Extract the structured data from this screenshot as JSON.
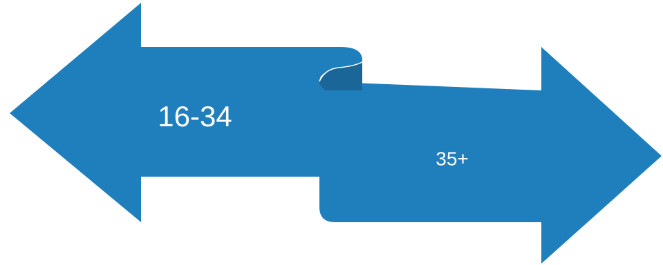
{
  "colors": {
    "arrow_fill": "#1f7fbd",
    "fold_fill": "#1a6698",
    "background": "#ffffff"
  },
  "diagram": {
    "left_arrow": {
      "label": "16-34",
      "direction": "left"
    },
    "right_arrow": {
      "label": "35+",
      "direction": "right"
    }
  }
}
